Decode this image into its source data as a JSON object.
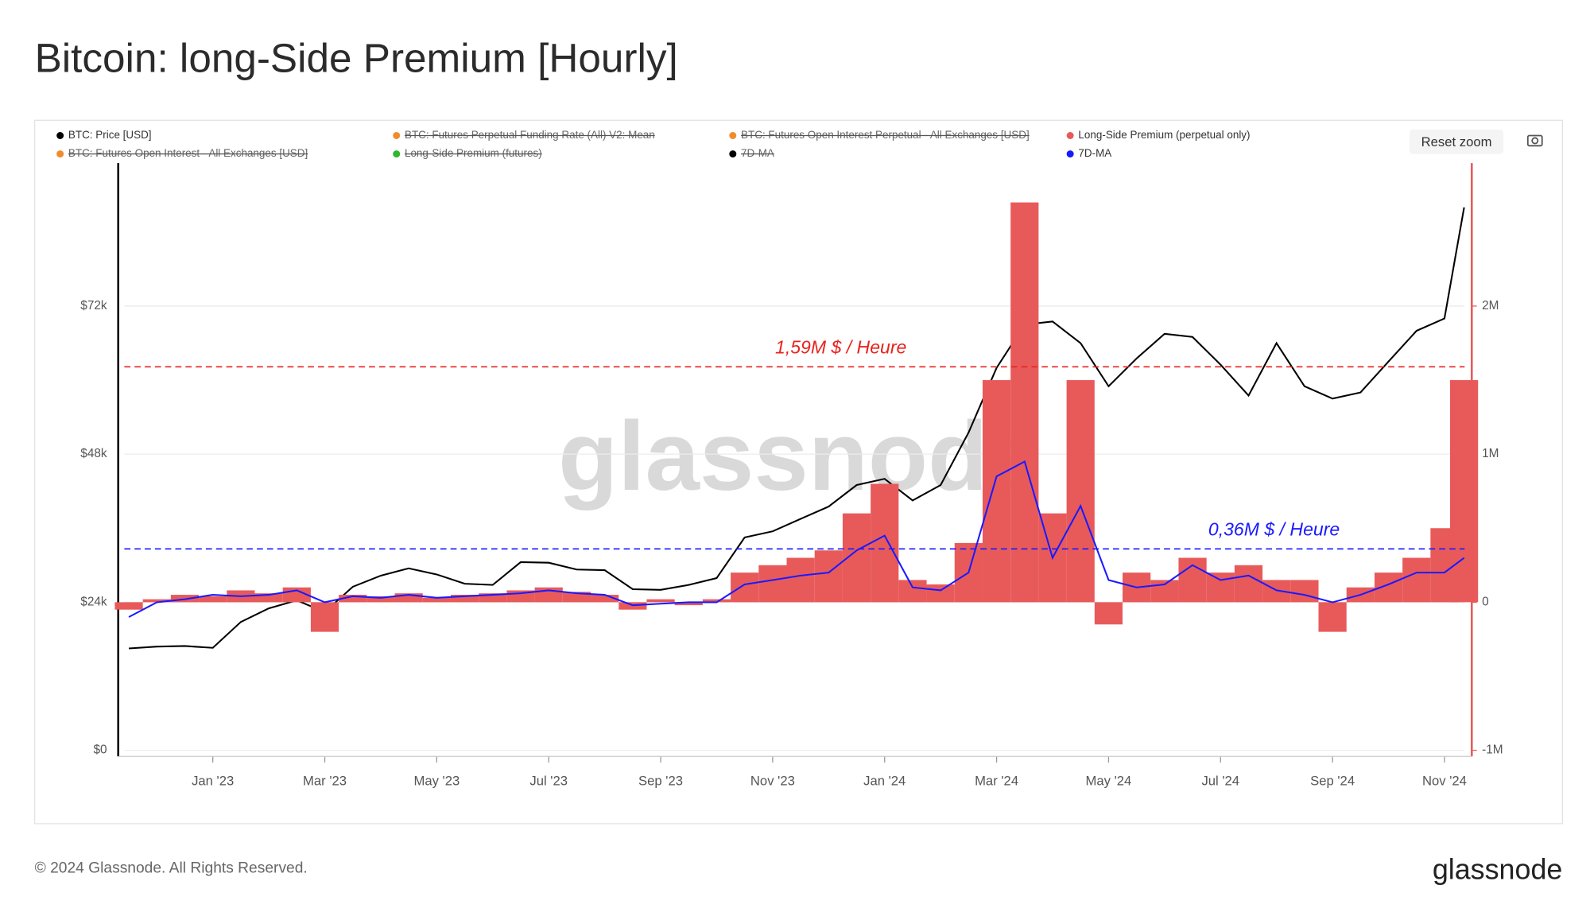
{
  "chart_data": {
    "type": "line",
    "title": "Bitcoin: long-Side Premium [Hourly]",
    "x": [
      -1.5,
      -1,
      -0.5,
      0,
      0.5,
      1,
      1.5,
      2,
      2.5,
      3,
      3.5,
      4,
      4.5,
      5,
      5.5,
      6,
      6.5,
      7,
      7.5,
      8,
      8.5,
      9,
      9.5,
      10,
      10.5,
      11,
      11.5,
      12,
      12.5,
      13,
      13.5,
      14,
      14.5,
      15,
      15.5,
      16,
      16.5,
      17,
      17.5,
      18,
      18.5,
      19,
      19.5,
      20,
      20.5,
      21,
      21.5,
      22,
      22.35
    ],
    "xlim": [
      -1.58,
      22.36
    ],
    "xticks": [
      {
        "value": 0,
        "label": "Jan '23"
      },
      {
        "value": 2,
        "label": "Mar '23"
      },
      {
        "value": 4,
        "label": "May '23"
      },
      {
        "value": 6,
        "label": "Jul '23"
      },
      {
        "value": 8,
        "label": "Sep '23"
      },
      {
        "value": 10,
        "label": "Nov '23"
      },
      {
        "value": 12,
        "label": "Jan '24"
      },
      {
        "value": 14,
        "label": "Mar '24"
      },
      {
        "value": 16,
        "label": "May '24"
      },
      {
        "value": 18,
        "label": "Jul '24"
      },
      {
        "value": 20,
        "label": "Sep '24"
      },
      {
        "value": 22,
        "label": "Nov '24"
      }
    ],
    "ylim": [
      0,
      96000
    ],
    "yticks": [
      {
        "value": 0,
        "label": "$0"
      },
      {
        "value": 24000,
        "label": "$24k"
      },
      {
        "value": 48000,
        "label": "$48k"
      },
      {
        "value": 72000,
        "label": "$72k"
      }
    ],
    "y2lim": [
      -1000000,
      3000000
    ],
    "y2ticks": [
      {
        "value": -1000000,
        "label": "-1M"
      },
      0,
      {
        "value": 1000000,
        "label": "1M"
      },
      {
        "value": 2000000,
        "label": "2M"
      }
    ],
    "series": [
      {
        "name": "BTC: Price [USD]",
        "color": "#000000",
        "kind": "line",
        "axis": "y",
        "values": [
          16500,
          16800,
          16900,
          16600,
          20800,
          23000,
          24300,
          22400,
          26500,
          28300,
          29500,
          28500,
          27000,
          26800,
          30500,
          30400,
          29300,
          29200,
          26100,
          26000,
          26800,
          27900,
          34500,
          35500,
          37500,
          39500,
          43000,
          44000,
          40500,
          43000,
          51500,
          62000,
          69000,
          69500,
          66000,
          59000,
          63500,
          67500,
          67000,
          62500,
          57500,
          66000,
          59000,
          57000,
          58000,
          63000,
          68000,
          70000,
          88000
        ]
      },
      {
        "name": "BTC: Futures Perpetual Funding Rate (All) V2: Mean",
        "color": "#f08c2c",
        "hidden": true
      },
      {
        "name": "BTC: Futures Open Interest Perpetual - All Exchanges [USD]",
        "color": "#f08c2c",
        "hidden": true
      },
      {
        "name": "Long-Side Premium (perpetual only)",
        "color": "#e85a5a",
        "kind": "bar",
        "axis": "y2",
        "values": [
          -50000,
          20000,
          50000,
          40000,
          80000,
          60000,
          100000,
          -200000,
          50000,
          40000,
          60000,
          30000,
          50000,
          60000,
          80000,
          100000,
          70000,
          50000,
          -50000,
          20000,
          -20000,
          20000,
          200000,
          250000,
          300000,
          350000,
          600000,
          800000,
          150000,
          120000,
          400000,
          1500000,
          2700000,
          600000,
          1500000,
          -150000,
          200000,
          150000,
          300000,
          200000,
          250000,
          150000,
          150000,
          -200000,
          100000,
          200000,
          300000,
          500000,
          1500000
        ]
      },
      {
        "name": "BTC: Futures Open Interest - All Exchanges [USD]",
        "color": "#f08c2c",
        "hidden": true
      },
      {
        "name": "Long-Side Premium (futures)",
        "color": "#2db82d",
        "hidden": true
      },
      {
        "name": "7D-MA",
        "color": "#000000",
        "hidden": true
      },
      {
        "name": "7D-MA",
        "color": "#1a1aff",
        "kind": "line",
        "axis": "y2",
        "values": [
          -100000,
          0,
          20000,
          50000,
          40000,
          50000,
          80000,
          0,
          40000,
          30000,
          50000,
          30000,
          40000,
          50000,
          60000,
          80000,
          60000,
          50000,
          -20000,
          -10000,
          0,
          0,
          120000,
          150000,
          180000,
          200000,
          350000,
          450000,
          100000,
          80000,
          200000,
          850000,
          950000,
          300000,
          650000,
          150000,
          100000,
          120000,
          250000,
          150000,
          180000,
          80000,
          50000,
          0,
          50000,
          120000,
          200000,
          200000,
          300000
        ]
      }
    ],
    "reference_lines": [
      {
        "value": 1590000,
        "label": "1,59M $ / Heure",
        "color": "#e8231f",
        "axis": "y2"
      },
      {
        "value": 360000,
        "label": "0,36M $ / Heure",
        "color": "#1a1aff",
        "axis": "y2"
      }
    ],
    "grid": true,
    "watermark": "glassnode",
    "reset_zoom": "Reset zoom"
  },
  "footer": "© 2024 Glassnode. All Rights Reserved.",
  "brand": "glassnode"
}
